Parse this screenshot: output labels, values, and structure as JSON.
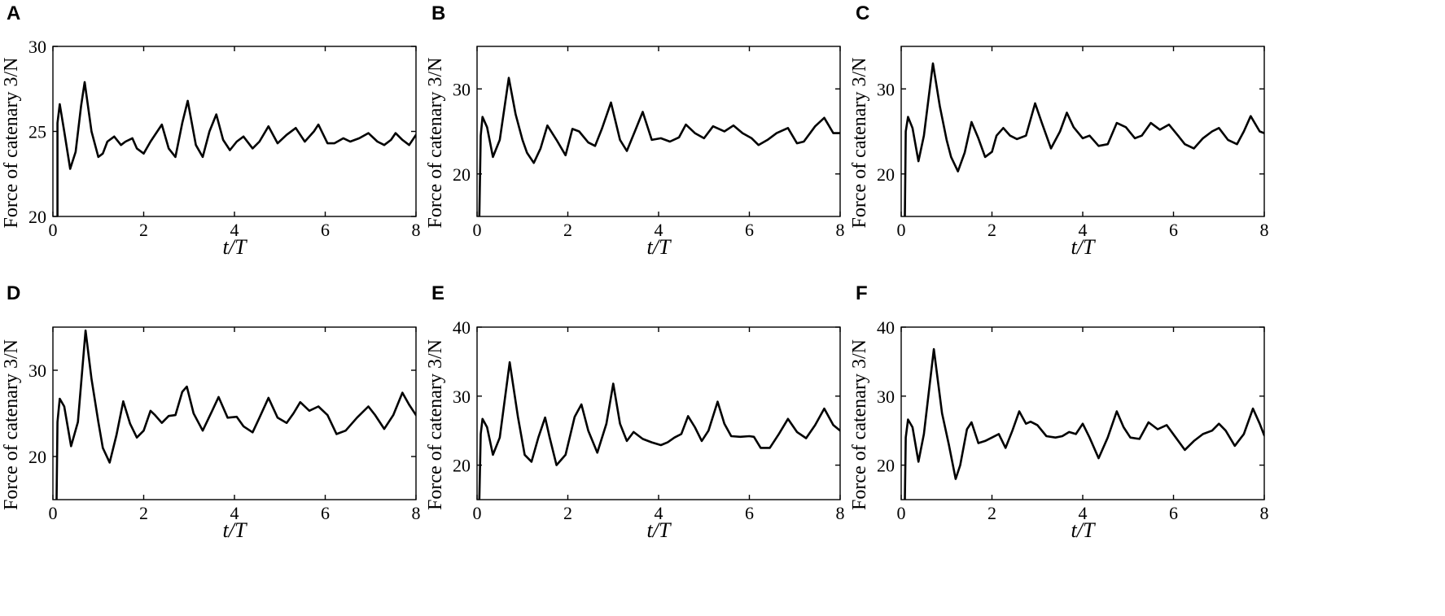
{
  "chart_data": [
    {
      "panel": "A",
      "type": "line",
      "xlabel": "t/T",
      "ylabel": "Force of catenary 3/N",
      "xlim": [
        0,
        8
      ],
      "ylim": [
        20,
        30
      ],
      "xticks": [
        0,
        2,
        4,
        6,
        8
      ],
      "yticks": [
        20,
        25,
        30
      ],
      "grid": false,
      "series": [
        {
          "x": [
            0.1,
            0.1,
            0.15,
            0.25,
            0.38,
            0.5,
            0.62,
            0.7,
            0.85,
            1.0,
            1.1,
            1.2,
            1.35,
            1.5,
            1.6,
            1.75,
            1.85,
            2.0,
            2.15,
            2.4,
            2.55,
            2.7,
            2.85,
            2.97,
            3.15,
            3.3,
            3.45,
            3.6,
            3.75,
            3.9,
            4.05,
            4.2,
            4.4,
            4.55,
            4.75,
            4.95,
            5.15,
            5.35,
            5.55,
            5.75,
            5.85,
            6.05,
            6.2,
            6.4,
            6.55,
            6.75,
            6.95,
            7.15,
            7.3,
            7.45,
            7.55,
            7.7,
            7.85,
            8.0
          ],
          "y": [
            20.0,
            25.5,
            26.6,
            25.0,
            22.8,
            23.8,
            26.5,
            27.9,
            25.0,
            23.5,
            23.7,
            24.4,
            24.7,
            24.2,
            24.4,
            24.6,
            24.0,
            23.7,
            24.4,
            25.4,
            24.0,
            23.5,
            25.5,
            26.8,
            24.2,
            23.5,
            25.0,
            26.0,
            24.5,
            23.9,
            24.4,
            24.7,
            24.0,
            24.4,
            25.3,
            24.3,
            24.8,
            25.2,
            24.4,
            25.0,
            25.4,
            24.3,
            24.3,
            24.6,
            24.4,
            24.6,
            24.9,
            24.4,
            24.2,
            24.5,
            24.9,
            24.5,
            24.2,
            24.8
          ]
        }
      ]
    },
    {
      "panel": "B",
      "type": "line",
      "xlabel": "t/T",
      "ylabel": "Force of catenary 3/N",
      "xlim": [
        0,
        8
      ],
      "ylim": [
        15,
        35
      ],
      "xticks": [
        0,
        2,
        4,
        6,
        8
      ],
      "yticks": [
        20,
        30
      ],
      "grid": false,
      "series": [
        {
          "x": [
            0.05,
            0.08,
            0.12,
            0.22,
            0.35,
            0.5,
            0.7,
            0.85,
            1.0,
            1.1,
            1.25,
            1.4,
            1.55,
            1.75,
            1.95,
            2.1,
            2.25,
            2.45,
            2.6,
            2.75,
            2.95,
            3.15,
            3.3,
            3.5,
            3.65,
            3.85,
            4.05,
            4.25,
            4.45,
            4.6,
            4.8,
            5.0,
            5.2,
            5.45,
            5.65,
            5.85,
            6.05,
            6.2,
            6.4,
            6.6,
            6.85,
            7.05,
            7.2,
            7.45,
            7.65,
            7.85,
            8.0
          ],
          "y": [
            15.0,
            24.5,
            26.7,
            25.5,
            22.0,
            24.0,
            31.3,
            27.0,
            24.0,
            22.5,
            21.3,
            23.0,
            25.7,
            24.0,
            22.2,
            25.3,
            25.0,
            23.7,
            23.3,
            25.3,
            28.4,
            24.0,
            22.7,
            25.3,
            27.3,
            24.0,
            24.2,
            23.8,
            24.3,
            25.8,
            24.8,
            24.2,
            25.6,
            25.0,
            25.7,
            24.8,
            24.2,
            23.4,
            24.0,
            24.8,
            25.4,
            23.6,
            23.8,
            25.6,
            26.6,
            24.8,
            24.8
          ]
        }
      ]
    },
    {
      "panel": "C",
      "type": "line",
      "xlabel": "t/T",
      "ylabel": "Force of catenary 3/N",
      "xlim": [
        0,
        8
      ],
      "ylim": [
        15,
        35
      ],
      "xticks": [
        0,
        2,
        4,
        6,
        8
      ],
      "yticks": [
        20,
        30
      ],
      "grid": false,
      "series": [
        {
          "x": [
            0.08,
            0.1,
            0.15,
            0.25,
            0.38,
            0.5,
            0.7,
            0.85,
            1.0,
            1.1,
            1.25,
            1.4,
            1.55,
            1.7,
            1.85,
            2.0,
            2.1,
            2.25,
            2.4,
            2.55,
            2.75,
            2.95,
            3.1,
            3.3,
            3.5,
            3.65,
            3.8,
            4.0,
            4.15,
            4.35,
            4.55,
            4.75,
            4.95,
            5.15,
            5.3,
            5.5,
            5.7,
            5.9,
            6.1,
            6.25,
            6.45,
            6.65,
            6.85,
            7.0,
            7.2,
            7.4,
            7.55,
            7.7,
            7.9,
            8.0
          ],
          "y": [
            15.0,
            25.0,
            26.7,
            25.4,
            21.5,
            24.5,
            33.0,
            28.0,
            24.0,
            22.0,
            20.3,
            22.5,
            26.1,
            24.2,
            22.0,
            22.6,
            24.5,
            25.4,
            24.5,
            24.1,
            24.5,
            28.3,
            26.0,
            23.0,
            25.0,
            27.2,
            25.5,
            24.2,
            24.5,
            23.3,
            23.5,
            26.0,
            25.5,
            24.2,
            24.5,
            26.0,
            25.2,
            25.8,
            24.5,
            23.5,
            23.0,
            24.2,
            25.0,
            25.4,
            24.0,
            23.5,
            25.0,
            26.8,
            25.0,
            24.8
          ]
        }
      ]
    },
    {
      "panel": "D",
      "type": "line",
      "xlabel": "t/T",
      "ylabel": "Force of catenary 3/N",
      "xlim": [
        0,
        8
      ],
      "ylim": [
        15,
        35
      ],
      "xticks": [
        0,
        2,
        4,
        6,
        8
      ],
      "yticks": [
        20,
        30
      ],
      "grid": false,
      "series": [
        {
          "x": [
            0.08,
            0.1,
            0.15,
            0.25,
            0.4,
            0.55,
            0.72,
            0.85,
            1.0,
            1.1,
            1.25,
            1.4,
            1.55,
            1.7,
            1.85,
            2.0,
            2.15,
            2.25,
            2.4,
            2.55,
            2.7,
            2.85,
            2.95,
            3.1,
            3.3,
            3.5,
            3.65,
            3.85,
            4.05,
            4.2,
            4.4,
            4.55,
            4.75,
            4.95,
            5.15,
            5.3,
            5.45,
            5.65,
            5.85,
            6.05,
            6.25,
            6.45,
            6.7,
            6.95,
            7.1,
            7.3,
            7.5,
            7.7,
            7.85,
            8.0
          ],
          "y": [
            15.0,
            24.0,
            26.7,
            25.8,
            21.2,
            24.0,
            34.6,
            29.0,
            24.0,
            21.0,
            19.3,
            22.5,
            26.4,
            23.8,
            22.2,
            23.0,
            25.3,
            24.8,
            23.9,
            24.7,
            24.8,
            27.5,
            28.1,
            25.0,
            23.0,
            25.2,
            26.9,
            24.5,
            24.6,
            23.5,
            22.8,
            24.5,
            26.8,
            24.5,
            23.9,
            25.0,
            26.3,
            25.3,
            25.8,
            24.8,
            22.6,
            23.0,
            24.5,
            25.8,
            24.8,
            23.2,
            24.8,
            27.4,
            26.0,
            24.8
          ]
        }
      ]
    },
    {
      "panel": "E",
      "type": "line",
      "xlabel": "t/T",
      "ylabel": "Force of catenary 3/N",
      "xlim": [
        0,
        8
      ],
      "ylim": [
        15,
        40
      ],
      "xticks": [
        0,
        2,
        4,
        6,
        8
      ],
      "yticks": [
        20,
        30,
        40
      ],
      "grid": false,
      "series": [
        {
          "x": [
            0.05,
            0.08,
            0.12,
            0.22,
            0.35,
            0.5,
            0.72,
            0.9,
            1.05,
            1.2,
            1.35,
            1.5,
            1.6,
            1.75,
            1.95,
            2.15,
            2.3,
            2.45,
            2.65,
            2.85,
            3.0,
            3.15,
            3.3,
            3.45,
            3.65,
            3.85,
            4.05,
            4.2,
            4.35,
            4.5,
            4.65,
            4.8,
            4.95,
            5.1,
            5.3,
            5.45,
            5.6,
            5.8,
            6.0,
            6.1,
            6.25,
            6.45,
            6.65,
            6.85,
            7.05,
            7.25,
            7.45,
            7.65,
            7.85,
            8.0
          ],
          "y": [
            15.0,
            24.5,
            26.7,
            25.5,
            21.5,
            24.0,
            34.9,
            27.0,
            21.5,
            20.5,
            24.0,
            26.9,
            24.0,
            20.0,
            21.5,
            27.0,
            28.8,
            25.0,
            21.8,
            26.0,
            31.8,
            26.0,
            23.5,
            24.8,
            23.8,
            23.3,
            22.9,
            23.3,
            24.0,
            24.5,
            27.1,
            25.5,
            23.5,
            25.0,
            29.2,
            26.0,
            24.2,
            24.1,
            24.2,
            24.1,
            22.5,
            22.5,
            24.5,
            26.7,
            24.8,
            23.9,
            25.8,
            28.2,
            25.8,
            25.0
          ]
        }
      ]
    },
    {
      "panel": "F",
      "type": "line",
      "xlabel": "t/T",
      "ylabel": "Force of catenary 3/N",
      "xlim": [
        0,
        8
      ],
      "ylim": [
        15,
        40
      ],
      "xticks": [
        0,
        2,
        4,
        6,
        8
      ],
      "yticks": [
        20,
        30,
        40
      ],
      "grid": false,
      "series": [
        {
          "x": [
            0.08,
            0.1,
            0.15,
            0.25,
            0.38,
            0.5,
            0.72,
            0.9,
            1.05,
            1.2,
            1.3,
            1.45,
            1.55,
            1.7,
            1.85,
            2.0,
            2.15,
            2.3,
            2.45,
            2.6,
            2.75,
            2.85,
            3.0,
            3.2,
            3.4,
            3.55,
            3.7,
            3.85,
            4.0,
            4.15,
            4.35,
            4.55,
            4.75,
            4.9,
            5.05,
            5.25,
            5.45,
            5.65,
            5.85,
            6.05,
            6.25,
            6.45,
            6.65,
            6.85,
            7.0,
            7.15,
            7.35,
            7.55,
            7.75,
            7.9,
            8.0
          ],
          "y": [
            15.0,
            24.0,
            26.6,
            25.5,
            20.5,
            24.5,
            36.8,
            27.5,
            23.0,
            18.0,
            20.0,
            25.2,
            26.2,
            23.2,
            23.5,
            24.0,
            24.5,
            22.5,
            25.0,
            27.8,
            26.0,
            26.3,
            25.8,
            24.2,
            24.0,
            24.2,
            24.8,
            24.5,
            26.0,
            24.0,
            21.0,
            24.0,
            27.8,
            25.5,
            24.0,
            23.8,
            26.2,
            25.2,
            25.8,
            24.0,
            22.2,
            23.5,
            24.5,
            25.0,
            26.0,
            25.0,
            22.8,
            24.5,
            28.2,
            26.0,
            24.3
          ]
        }
      ]
    }
  ]
}
